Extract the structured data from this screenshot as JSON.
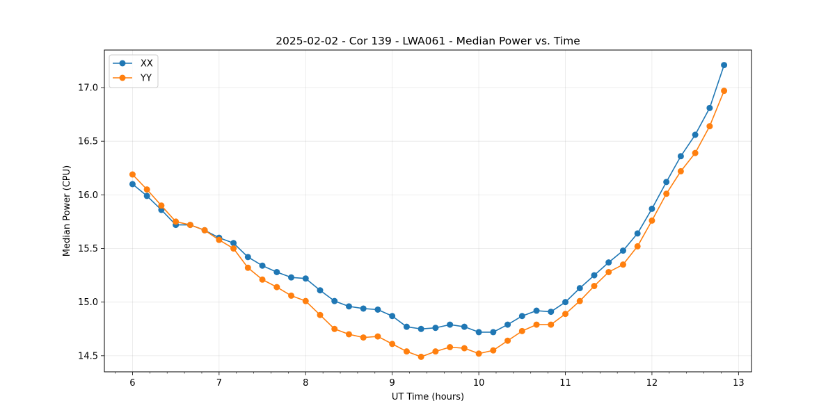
{
  "chart_data": {
    "type": "line",
    "title": "2025-02-02 - Cor 139 - LWA061 - Median Power vs. Time",
    "xlabel": "UT Time (hours)",
    "ylabel": "Median Power (CPU)",
    "xlim": [
      5.675,
      13.15
    ],
    "ylim": [
      14.35,
      17.35
    ],
    "xticks": [
      6,
      7,
      8,
      9,
      10,
      11,
      12,
      13
    ],
    "xtick_labels": [
      "6",
      "7",
      "8",
      "9",
      "10",
      "11",
      "12",
      "13"
    ],
    "yticks": [
      14.5,
      15.0,
      15.5,
      16.0,
      16.5,
      17.0
    ],
    "ytick_labels": [
      "14.5",
      "15.0",
      "15.5",
      "16.0",
      "16.5",
      "17.0"
    ],
    "grid": true,
    "legend_position": "top-left",
    "x": [
      6.0,
      6.1667,
      6.3333,
      6.5,
      6.6667,
      6.8333,
      7.0,
      7.1667,
      7.3333,
      7.5,
      7.6667,
      7.8333,
      8.0,
      8.1667,
      8.3333,
      8.5,
      8.6667,
      8.8333,
      9.0,
      9.1667,
      9.3333,
      9.5,
      9.6667,
      9.8333,
      10.0,
      10.1667,
      10.3333,
      10.5,
      10.6667,
      10.8333,
      11.0,
      11.1667,
      11.3333,
      11.5,
      11.6667,
      11.8333,
      12.0,
      12.1667,
      12.3333,
      12.5,
      12.6667,
      12.8333
    ],
    "series": [
      {
        "name": "XX",
        "color": "#1f77b4",
        "values": [
          16.1,
          15.99,
          15.86,
          15.72,
          15.72,
          15.67,
          15.6,
          15.55,
          15.42,
          15.34,
          15.28,
          15.23,
          15.22,
          15.11,
          15.01,
          14.96,
          14.94,
          14.93,
          14.87,
          14.77,
          14.75,
          14.76,
          14.79,
          14.77,
          14.72,
          14.72,
          14.79,
          14.87,
          14.92,
          14.91,
          15.0,
          15.13,
          15.25,
          15.37,
          15.48,
          15.64,
          15.87,
          16.12,
          16.36,
          16.56,
          16.81,
          17.21
        ]
      },
      {
        "name": "YY",
        "color": "#ff7f0e",
        "values": [
          16.19,
          16.05,
          15.9,
          15.75,
          15.72,
          15.67,
          15.58,
          15.5,
          15.32,
          15.21,
          15.14,
          15.06,
          15.01,
          14.88,
          14.75,
          14.7,
          14.67,
          14.68,
          14.61,
          14.54,
          14.49,
          14.54,
          14.58,
          14.57,
          14.52,
          14.55,
          14.64,
          14.73,
          14.79,
          14.79,
          14.89,
          15.01,
          15.15,
          15.28,
          15.35,
          15.52,
          15.76,
          16.01,
          16.22,
          16.39,
          16.64,
          16.97
        ]
      }
    ]
  }
}
